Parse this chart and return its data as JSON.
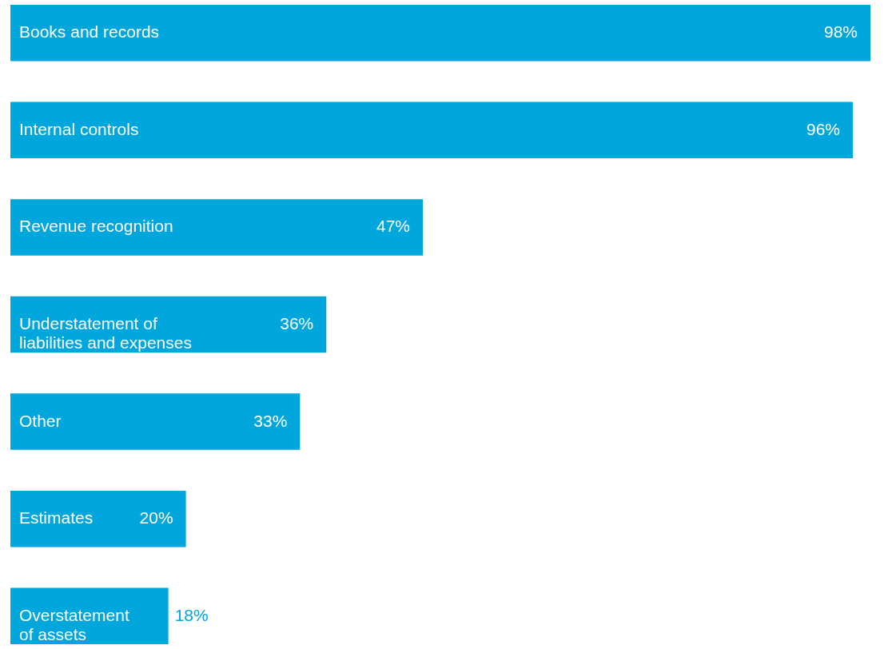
{
  "chart_data": {
    "type": "bar",
    "orientation": "horizontal",
    "color": "#00a6dc",
    "categories": [
      "Books and records",
      "Internal controls",
      "Revenue recognition",
      "Understatement of liabilities and expenses",
      "Other",
      "Estimates",
      "Overstatement of assets"
    ],
    "values": [
      98,
      96,
      47,
      36,
      33,
      20,
      18
    ],
    "value_labels": [
      "98%",
      "96%",
      "47%",
      "36%",
      "33%",
      "20%",
      "18%"
    ],
    "grid": false
  }
}
